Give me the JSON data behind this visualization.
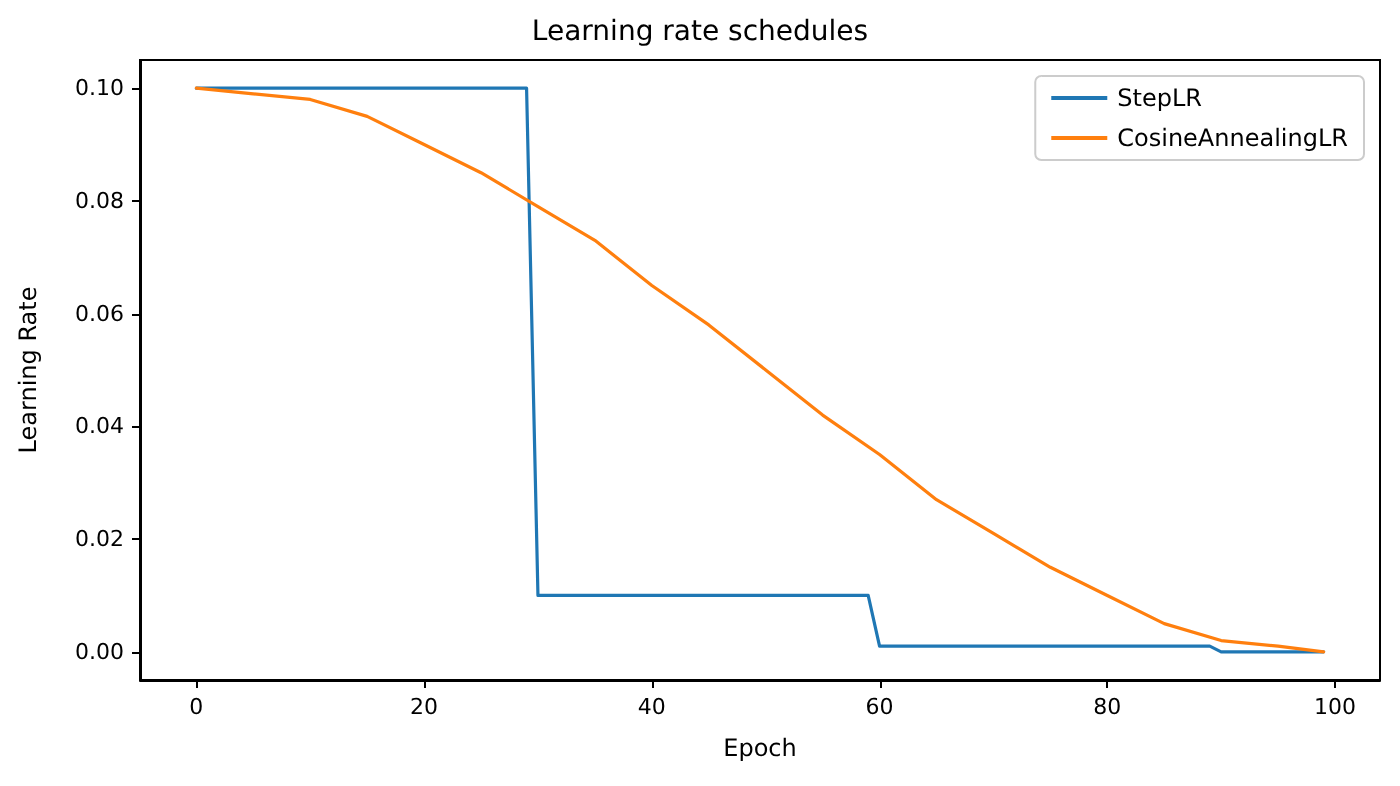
{
  "chart_data": {
    "type": "line",
    "title": "Learning rate schedules",
    "xlabel": "Epoch",
    "ylabel": "Learning Rate",
    "series": [
      {
        "name": "StepLR",
        "color": "#1f77b4",
        "x": [
          0,
          29,
          30,
          59,
          60,
          89,
          90,
          99
        ],
        "values": [
          0.1,
          0.1,
          0.01,
          0.01,
          0.001,
          0.001,
          0.0,
          0.0
        ]
      },
      {
        "name": "CosineAnnealingLR",
        "color": "#ff7f0e",
        "x": [
          0,
          5,
          10,
          15,
          20,
          25,
          30,
          35,
          40,
          45,
          50,
          55,
          60,
          65,
          70,
          75,
          80,
          85,
          90,
          95,
          99
        ],
        "values": [
          0.1,
          0.099,
          0.098,
          0.095,
          0.09,
          0.085,
          0.079,
          0.073,
          0.065,
          0.058,
          0.05,
          0.042,
          0.035,
          0.027,
          0.021,
          0.015,
          0.01,
          0.005,
          0.002,
          0.001,
          0.0
        ]
      }
    ],
    "xlim": [
      -4.95,
      103.95
    ],
    "xticks": [
      0,
      20,
      40,
      60,
      80,
      100
    ],
    "ylim": [
      -0.005,
      0.105
    ],
    "yticks": [
      {
        "value": 0,
        "label": "0.00"
      },
      {
        "value": 0.02,
        "label": "0.02"
      },
      {
        "value": 0.04,
        "label": "0.04"
      },
      {
        "value": 0.06,
        "label": "0.06"
      },
      {
        "value": 0.08,
        "label": "0.08"
      },
      {
        "value": 0.1,
        "label": "0.10"
      }
    ],
    "grid": false,
    "legend": "top right",
    "marker": "none",
    "line_style": "solid"
  }
}
